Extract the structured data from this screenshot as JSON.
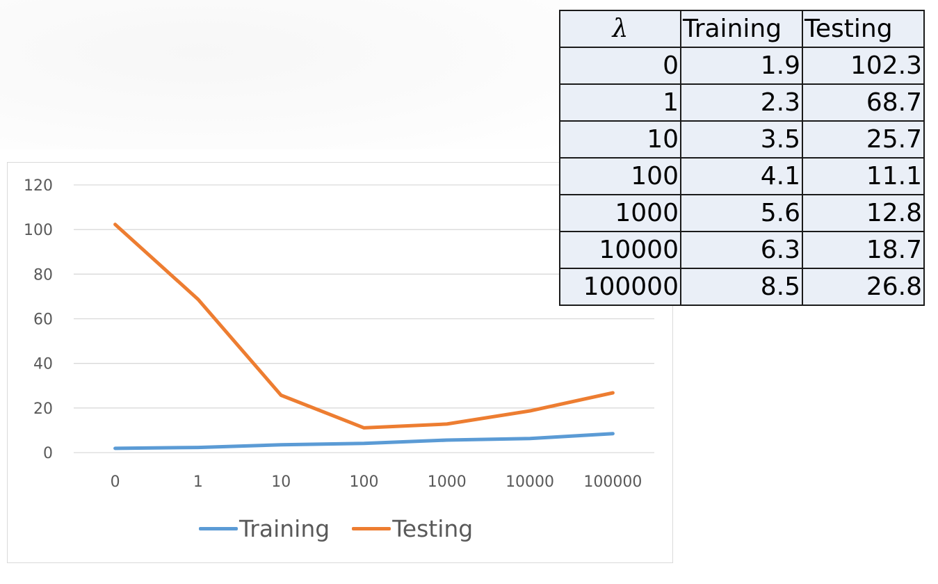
{
  "table": {
    "headers": [
      "λ",
      "Training",
      "Testing"
    ],
    "rows": [
      [
        "0",
        "1.9",
        "102.3"
      ],
      [
        "1",
        "2.3",
        "68.7"
      ],
      [
        "10",
        "3.5",
        "25.7"
      ],
      [
        "100",
        "4.1",
        "11.1"
      ],
      [
        "1000",
        "5.6",
        "12.8"
      ],
      [
        "10000",
        "6.3",
        "18.7"
      ],
      [
        "100000",
        "8.5",
        "26.8"
      ]
    ]
  },
  "chart_data": {
    "type": "line",
    "title": "",
    "xlabel": "",
    "ylabel": "",
    "categories": [
      "0",
      "1",
      "10",
      "100",
      "1000",
      "10000",
      "100000"
    ],
    "series": [
      {
        "name": "Training",
        "values": [
          1.9,
          2.3,
          3.5,
          4.1,
          5.6,
          6.3,
          8.5
        ],
        "color": "#5b9bd5"
      },
      {
        "name": "Testing",
        "values": [
          102.3,
          68.7,
          25.7,
          11.1,
          12.8,
          18.7,
          26.8
        ],
        "color": "#ed7d31"
      }
    ],
    "yticks": [
      "0",
      "20",
      "40",
      "60",
      "80",
      "100",
      "120"
    ],
    "ylim": [
      0,
      120
    ],
    "grid": true,
    "legend": "bottom",
    "gridline_color": "#d9d9d9",
    "axis_text_color": "#595959"
  }
}
